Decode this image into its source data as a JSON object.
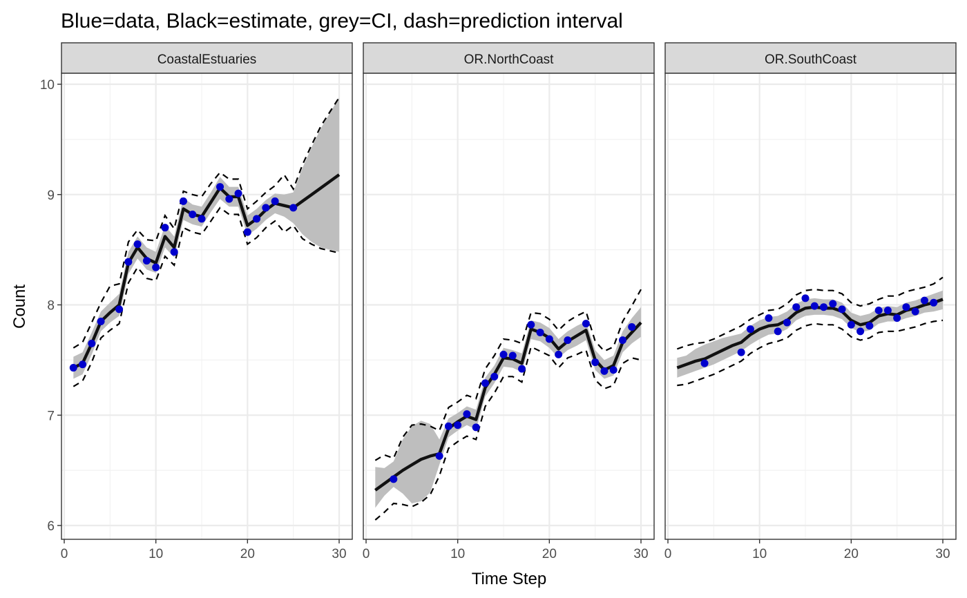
{
  "title": "Blue=data, Black=estimate, grey=CI, dash=prediction interval",
  "xlabel": "Time Step",
  "ylabel": "Count",
  "colors": {
    "data_points": "#0000CD",
    "estimate": "#111111",
    "ci_fill": "#BEBEBE",
    "strip_fill": "#D9D9D9",
    "grid": "#EBEBEB"
  },
  "chart_data": [
    {
      "type": "line",
      "panel": "CoastalEstuaries",
      "xlim": [
        0,
        30
      ],
      "ylim": [
        6,
        10
      ],
      "x_ticks": [
        0,
        10,
        20,
        30
      ],
      "y_ticks": [
        6,
        7,
        8,
        9,
        10
      ],
      "grid": true,
      "x": [
        1,
        2,
        3,
        4,
        5,
        6,
        7,
        8,
        9,
        10,
        11,
        12,
        13,
        14,
        15,
        16,
        17,
        18,
        19,
        20,
        21,
        22,
        23,
        24,
        25,
        26,
        27,
        28,
        29,
        30
      ],
      "estimate": [
        7.43,
        7.47,
        7.65,
        7.85,
        7.93,
        8.0,
        8.38,
        8.52,
        8.42,
        8.38,
        8.62,
        8.52,
        8.87,
        8.82,
        8.8,
        8.93,
        9.06,
        8.98,
        8.98,
        8.72,
        8.78,
        8.86,
        8.92,
        8.9,
        8.88,
        8.94,
        9.0,
        9.06,
        9.12,
        9.18
      ],
      "ci_lower": [
        7.33,
        7.37,
        7.55,
        7.76,
        7.84,
        7.9,
        8.28,
        8.42,
        8.32,
        8.29,
        8.52,
        8.43,
        8.77,
        8.73,
        8.71,
        8.84,
        8.96,
        8.89,
        8.89,
        8.63,
        8.69,
        8.77,
        8.83,
        8.8,
        8.74,
        8.64,
        8.57,
        8.52,
        8.5,
        8.48
      ],
      "ci_upper": [
        7.53,
        7.57,
        7.75,
        7.94,
        8.02,
        8.1,
        8.48,
        8.62,
        8.52,
        8.48,
        8.72,
        8.62,
        8.97,
        8.91,
        8.89,
        9.02,
        9.16,
        9.07,
        9.07,
        8.81,
        8.87,
        8.95,
        9.01,
        9.0,
        9.02,
        9.24,
        9.43,
        9.6,
        9.74,
        9.88
      ],
      "pi_lower": [
        7.26,
        7.31,
        7.48,
        7.7,
        7.77,
        7.83,
        8.2,
        8.34,
        8.24,
        8.22,
        8.44,
        8.36,
        8.7,
        8.66,
        8.64,
        8.76,
        8.88,
        8.82,
        8.82,
        8.55,
        8.61,
        8.7,
        8.76,
        8.66,
        8.72,
        8.6,
        8.55,
        8.51,
        8.49,
        8.47
      ],
      "pi_upper": [
        7.61,
        7.66,
        7.84,
        8.02,
        8.17,
        8.19,
        8.57,
        8.68,
        8.59,
        8.58,
        8.81,
        8.69,
        9.03,
        9.0,
        8.98,
        9.1,
        9.2,
        9.14,
        9.14,
        8.87,
        8.94,
        9.02,
        9.08,
        9.18,
        9.05,
        9.27,
        9.45,
        9.62,
        9.75,
        9.88
      ],
      "points": [
        [
          1,
          7.43
        ],
        [
          2,
          7.46
        ],
        [
          3,
          7.65
        ],
        [
          4,
          7.85
        ],
        [
          6,
          7.96
        ],
        [
          7,
          8.39
        ],
        [
          8,
          8.55
        ],
        [
          9,
          8.4
        ],
        [
          10,
          8.34
        ],
        [
          11,
          8.7
        ],
        [
          12,
          8.48
        ],
        [
          13,
          8.94
        ],
        [
          14,
          8.82
        ],
        [
          15,
          8.78
        ],
        [
          17,
          9.07
        ],
        [
          18,
          8.96
        ],
        [
          19,
          9.01
        ],
        [
          20,
          8.66
        ],
        [
          21,
          8.78
        ],
        [
          22,
          8.88
        ],
        [
          23,
          8.94
        ],
        [
          25,
          8.88
        ]
      ]
    },
    {
      "type": "line",
      "panel": "OR.NorthCoast",
      "xlim": [
        0,
        30
      ],
      "ylim": [
        6,
        10
      ],
      "x_ticks": [
        0,
        10,
        20,
        30
      ],
      "y_ticks": [
        6,
        7,
        8,
        9,
        10
      ],
      "grid": true,
      "x": [
        1,
        2,
        3,
        4,
        5,
        6,
        7,
        8,
        9,
        10,
        11,
        12,
        13,
        14,
        15,
        16,
        17,
        18,
        19,
        20,
        21,
        22,
        23,
        24,
        25,
        26,
        27,
        28,
        29,
        30
      ],
      "estimate": [
        6.32,
        6.38,
        6.44,
        6.5,
        6.55,
        6.6,
        6.63,
        6.65,
        6.88,
        6.94,
        6.99,
        6.96,
        7.25,
        7.37,
        7.52,
        7.51,
        7.47,
        7.78,
        7.75,
        7.7,
        7.6,
        7.67,
        7.72,
        7.77,
        7.5,
        7.41,
        7.45,
        7.66,
        7.75,
        7.84
      ],
      "ci_lower": [
        6.16,
        6.27,
        6.35,
        6.29,
        6.2,
        6.22,
        6.3,
        6.55,
        6.8,
        6.86,
        6.91,
        6.87,
        7.17,
        7.29,
        7.44,
        7.43,
        7.39,
        7.69,
        7.67,
        7.61,
        7.52,
        7.59,
        7.63,
        7.68,
        7.41,
        7.33,
        7.36,
        7.57,
        7.65,
        7.71
      ],
      "ci_upper": [
        6.53,
        6.52,
        6.58,
        6.78,
        6.9,
        6.95,
        6.92,
        6.78,
        6.97,
        7.02,
        7.08,
        7.05,
        7.34,
        7.45,
        7.61,
        7.59,
        7.56,
        7.86,
        7.84,
        7.79,
        7.69,
        7.76,
        7.81,
        7.85,
        7.59,
        7.5,
        7.54,
        7.76,
        7.88,
        7.98
      ],
      "pi_lower": [
        6.05,
        6.12,
        6.2,
        6.19,
        6.17,
        6.21,
        6.28,
        6.45,
        6.7,
        6.76,
        6.81,
        6.78,
        7.08,
        7.2,
        7.35,
        7.35,
        7.3,
        7.62,
        7.58,
        7.54,
        7.43,
        7.52,
        7.55,
        7.59,
        7.32,
        7.24,
        7.27,
        7.47,
        7.52,
        7.5
      ],
      "pi_upper": [
        6.59,
        6.64,
        6.61,
        6.8,
        6.91,
        6.92,
        6.9,
        6.86,
        7.07,
        7.12,
        7.18,
        7.15,
        7.42,
        7.54,
        7.69,
        7.68,
        7.65,
        7.93,
        7.92,
        7.87,
        7.77,
        7.85,
        7.9,
        7.94,
        7.67,
        7.58,
        7.62,
        7.85,
        7.99,
        8.14
      ],
      "points": [
        [
          3,
          6.42
        ],
        [
          8,
          6.63
        ],
        [
          9,
          6.9
        ],
        [
          10,
          6.91
        ],
        [
          11,
          7.01
        ],
        [
          12,
          6.89
        ],
        [
          13,
          7.29
        ],
        [
          14,
          7.35
        ],
        [
          15,
          7.55
        ],
        [
          16,
          7.54
        ],
        [
          17,
          7.42
        ],
        [
          18,
          7.82
        ],
        [
          19,
          7.75
        ],
        [
          20,
          7.69
        ],
        [
          21,
          7.55
        ],
        [
          22,
          7.68
        ],
        [
          24,
          7.83
        ],
        [
          25,
          7.48
        ],
        [
          26,
          7.4
        ],
        [
          27,
          7.41
        ],
        [
          28,
          7.68
        ],
        [
          29,
          7.8
        ]
      ]
    },
    {
      "type": "line",
      "panel": "OR.SouthCoast",
      "xlim": [
        0,
        30
      ],
      "ylim": [
        6,
        10
      ],
      "x_ticks": [
        0,
        10,
        20,
        30
      ],
      "y_ticks": [
        6,
        7,
        8,
        9,
        10
      ],
      "grid": true,
      "x": [
        1,
        2,
        3,
        4,
        5,
        6,
        7,
        8,
        9,
        10,
        11,
        12,
        13,
        14,
        15,
        16,
        17,
        18,
        19,
        20,
        21,
        22,
        23,
        24,
        25,
        26,
        27,
        28,
        29,
        30
      ],
      "estimate": [
        7.43,
        7.46,
        7.49,
        7.51,
        7.55,
        7.59,
        7.63,
        7.66,
        7.73,
        7.78,
        7.81,
        7.82,
        7.86,
        7.93,
        7.97,
        7.98,
        7.97,
        7.97,
        7.94,
        7.86,
        7.82,
        7.84,
        7.9,
        7.92,
        7.91,
        7.95,
        7.97,
        8.0,
        8.02,
        8.05
      ],
      "ci_lower": [
        7.34,
        7.37,
        7.4,
        7.43,
        7.46,
        7.5,
        7.54,
        7.58,
        7.64,
        7.69,
        7.73,
        7.74,
        7.78,
        7.86,
        7.9,
        7.91,
        7.91,
        7.9,
        7.87,
        7.79,
        7.75,
        7.77,
        7.83,
        7.85,
        7.85,
        7.88,
        7.9,
        7.93,
        7.94,
        7.96
      ],
      "ci_upper": [
        7.52,
        7.54,
        7.6,
        7.64,
        7.67,
        7.7,
        7.72,
        7.74,
        7.81,
        7.86,
        7.89,
        7.9,
        7.94,
        8.01,
        8.05,
        8.06,
        8.05,
        8.05,
        8.02,
        7.93,
        7.9,
        7.92,
        7.97,
        7.99,
        7.98,
        8.02,
        8.04,
        8.07,
        8.1,
        8.13
      ],
      "pi_lower": [
        7.27,
        7.28,
        7.31,
        7.34,
        7.37,
        7.41,
        7.45,
        7.49,
        7.56,
        7.61,
        7.65,
        7.67,
        7.7,
        7.77,
        7.81,
        7.83,
        7.82,
        7.82,
        7.78,
        7.71,
        7.68,
        7.7,
        7.75,
        7.76,
        7.76,
        7.78,
        7.8,
        7.83,
        7.85,
        7.86
      ],
      "pi_upper": [
        7.6,
        7.63,
        7.65,
        7.66,
        7.69,
        7.73,
        7.77,
        7.81,
        7.87,
        7.91,
        7.95,
        7.96,
        8.01,
        8.09,
        8.13,
        8.14,
        8.13,
        8.13,
        8.1,
        8.02,
        7.99,
        8.01,
        8.05,
        8.08,
        8.08,
        8.12,
        8.14,
        8.16,
        8.19,
        8.25
      ],
      "points": [
        [
          4,
          7.47
        ],
        [
          8,
          7.57
        ],
        [
          9,
          7.78
        ],
        [
          11,
          7.88
        ],
        [
          12,
          7.76
        ],
        [
          13,
          7.84
        ],
        [
          14,
          7.98
        ],
        [
          15,
          8.06
        ],
        [
          16,
          7.99
        ],
        [
          17,
          7.98
        ],
        [
          18,
          8.01
        ],
        [
          19,
          7.96
        ],
        [
          20,
          7.82
        ],
        [
          21,
          7.76
        ],
        [
          22,
          7.81
        ],
        [
          23,
          7.95
        ],
        [
          24,
          7.95
        ],
        [
          25,
          7.88
        ],
        [
          26,
          7.98
        ],
        [
          27,
          7.94
        ],
        [
          28,
          8.04
        ],
        [
          29,
          8.02
        ]
      ]
    }
  ]
}
